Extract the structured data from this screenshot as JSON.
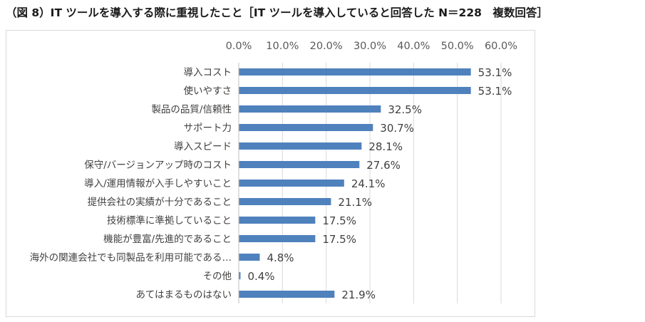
{
  "page": {
    "title": "（図 8）IT ツールを導入する際に重視したこと［IT ツールを導入していると回答した N＝228　複数回答］"
  },
  "chart_data": {
    "type": "bar",
    "orientation": "horizontal",
    "title": "",
    "xlabel": "",
    "ylabel": "",
    "xlim": [
      0,
      60
    ],
    "ticks": [
      "0.0%",
      "10.0%",
      "20.0%",
      "30.0%",
      "40.0%",
      "50.0%",
      "60.0%"
    ],
    "tick_values": [
      0,
      10,
      20,
      30,
      40,
      50,
      60
    ],
    "axis_position": "top",
    "grid": true,
    "legend": "none",
    "bar_color": "#4f81bd",
    "categories": [
      "導入コスト",
      "使いやすさ",
      "製品の品質/信頼性",
      "サポート力",
      "導入スピード",
      "保守/バージョンアップ時のコスト",
      "導入/運用情報が入手しやすいこと",
      "提供会社の実績が十分であること",
      "技術標準に準拠していること",
      "機能が豊富/先進的であること",
      "海外の関連会社でも同製品を利用可能である…",
      "その他",
      "あてはまるものはない"
    ],
    "values": [
      53.1,
      53.1,
      32.5,
      30.7,
      28.1,
      27.6,
      24.1,
      21.1,
      17.5,
      17.5,
      4.8,
      0.4,
      21.9
    ],
    "data_labels": [
      "53.1%",
      "53.1%",
      "32.5%",
      "30.7%",
      "28.1%",
      "27.6%",
      "24.1%",
      "21.1%",
      "17.5%",
      "17.5%",
      "4.8%",
      "0.4%",
      "21.9%"
    ]
  }
}
